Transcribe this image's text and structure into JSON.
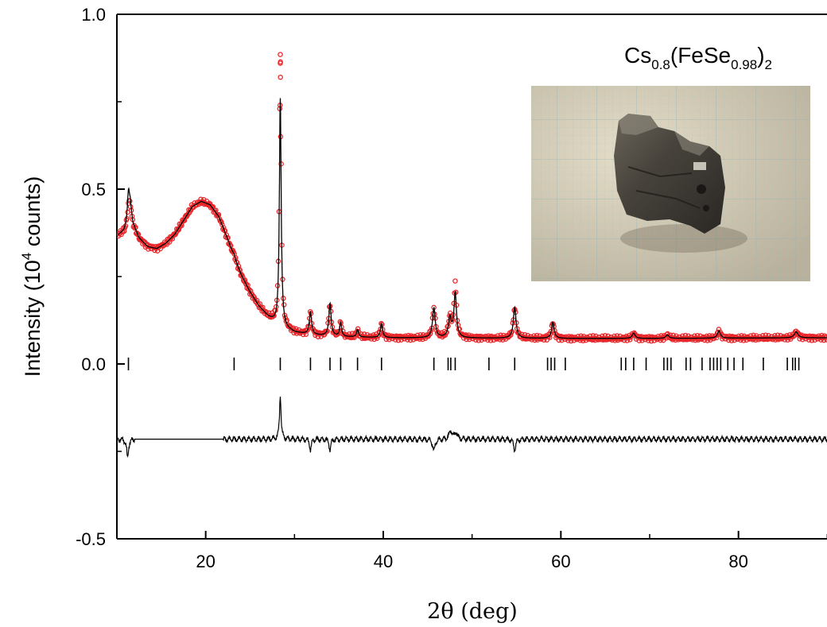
{
  "chart_data": {
    "type": "scatter",
    "title": "",
    "formula": {
      "base": "Cs",
      "sub1": "0.8",
      "mid": "(FeSe",
      "sub2": "0.98",
      "close": ")",
      "sub3": "2"
    },
    "xlabel": "2θ (deg)",
    "ylabel_prefix": "Intensity (10",
    "ylabel_sup": "4",
    "ylabel_suffix": " counts)",
    "xlim": [
      10,
      90
    ],
    "ylim": [
      -0.5,
      1.0
    ],
    "x_ticks": [
      20,
      40,
      60,
      80
    ],
    "y_ticks": [
      {
        "value": -0.5,
        "label": "-0.5"
      },
      {
        "value": 0.0,
        "label": "0.0"
      },
      {
        "value": 0.5,
        "label": "0.5"
      },
      {
        "value": 1.0,
        "label": "1.0"
      }
    ],
    "series": [
      {
        "role": "observed",
        "style": "open-circles",
        "color": "#e8262a",
        "background_points": [
          [
            10.2,
            0.37
          ],
          [
            10.8,
            0.38
          ],
          [
            11.2,
            0.4
          ],
          [
            11.5,
            0.45
          ],
          [
            11.8,
            0.4
          ],
          [
            12.5,
            0.36
          ],
          [
            13.5,
            0.335
          ],
          [
            14.5,
            0.33
          ],
          [
            15.5,
            0.345
          ],
          [
            16.5,
            0.37
          ],
          [
            17.5,
            0.41
          ],
          [
            18.5,
            0.45
          ],
          [
            19.5,
            0.465
          ],
          [
            20.5,
            0.455
          ],
          [
            21.5,
            0.42
          ],
          [
            22.5,
            0.355
          ],
          [
            23.3,
            0.3
          ],
          [
            24.0,
            0.255
          ],
          [
            25.0,
            0.205
          ],
          [
            26.0,
            0.165
          ],
          [
            27.0,
            0.135
          ],
          [
            27.8,
            0.118
          ],
          [
            29.0,
            0.1
          ],
          [
            30.0,
            0.09
          ],
          [
            32.0,
            0.083
          ],
          [
            35.0,
            0.078
          ],
          [
            40.0,
            0.075
          ],
          [
            50.0,
            0.074
          ],
          [
            60.0,
            0.073
          ],
          [
            70.0,
            0.073
          ],
          [
            80.0,
            0.074
          ],
          [
            90.0,
            0.075
          ]
        ],
        "peaks": [
          {
            "x": 11.3,
            "y": 0.46,
            "w": 0.15
          },
          {
            "x": 23.2,
            "y": 0.315,
            "w": 0.15
          },
          {
            "x": 28.4,
            "y": 0.885,
            "w": 0.12
          },
          {
            "x": 31.8,
            "y": 0.148,
            "w": 0.15
          },
          {
            "x": 34.0,
            "y": 0.173,
            "w": 0.15
          },
          {
            "x": 35.2,
            "y": 0.118,
            "w": 0.13
          },
          {
            "x": 37.1,
            "y": 0.098,
            "w": 0.13
          },
          {
            "x": 39.8,
            "y": 0.115,
            "w": 0.15
          },
          {
            "x": 45.7,
            "y": 0.16,
            "w": 0.18
          },
          {
            "x": 47.5,
            "y": 0.13,
            "w": 0.2
          },
          {
            "x": 48.1,
            "y": 0.23,
            "w": 0.17
          },
          {
            "x": 54.8,
            "y": 0.162,
            "w": 0.18
          },
          {
            "x": 59.1,
            "y": 0.12,
            "w": 0.17
          },
          {
            "x": 68.2,
            "y": 0.088,
            "w": 0.2
          },
          {
            "x": 72.0,
            "y": 0.083,
            "w": 0.2
          },
          {
            "x": 77.8,
            "y": 0.095,
            "w": 0.2
          },
          {
            "x": 86.5,
            "y": 0.092,
            "w": 0.25
          }
        ]
      },
      {
        "role": "calculated",
        "style": "line",
        "color": "#000000",
        "peak_scale": {
          "28.4": 0.76,
          "11.3": 0.5,
          "48.1": 0.2,
          "34.0": 0.18
        }
      },
      {
        "role": "difference",
        "style": "line",
        "color": "#000000",
        "offset": -0.215,
        "excluded_range": [
          12.0,
          22.0
        ],
        "features": [
          {
            "x": 11.2,
            "y": -0.27,
            "w": 0.12
          },
          {
            "x": 28.4,
            "y": -0.085,
            "w": 0.1
          },
          {
            "x": 31.8,
            "y": -0.245,
            "w": 0.12
          },
          {
            "x": 34.0,
            "y": -0.245,
            "w": 0.12
          },
          {
            "x": 45.7,
            "y": -0.25,
            "w": 0.15
          },
          {
            "x": 47.6,
            "y": -0.19,
            "w": 0.2
          },
          {
            "x": 48.2,
            "y": -0.195,
            "w": 0.15
          },
          {
            "x": 54.8,
            "y": -0.245,
            "w": 0.15
          }
        ]
      }
    ],
    "reflection_ticks": {
      "y": 0.0,
      "positions": [
        11.3,
        23.2,
        28.4,
        31.8,
        34.0,
        35.2,
        37.1,
        39.8,
        45.7,
        47.3,
        47.6,
        48.1,
        51.9,
        54.8,
        58.5,
        58.9,
        59.3,
        60.5,
        66.8,
        67.3,
        68.2,
        69.6,
        71.6,
        72.0,
        72.4,
        74.1,
        74.6,
        75.9,
        76.8,
        77.2,
        77.6,
        78.0,
        78.8,
        79.5,
        80.5,
        82.8,
        85.5,
        86.1,
        86.4,
        86.8
      ]
    },
    "grid": false,
    "legend": "none"
  },
  "inset_photo": {
    "description_icon": "crystal-photo"
  }
}
